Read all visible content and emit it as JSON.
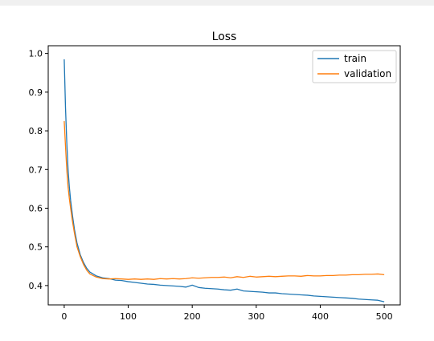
{
  "chart_data": {
    "type": "line",
    "title": "Loss",
    "xlabel": "",
    "ylabel": "",
    "xlim": [
      -25,
      525
    ],
    "ylim": [
      0.35,
      1.02
    ],
    "xticks": [
      0,
      100,
      200,
      300,
      400,
      500
    ],
    "yticks": [
      0.4,
      0.5,
      0.6,
      0.7,
      0.8,
      0.9,
      1.0
    ],
    "xtick_labels": [
      "0",
      "100",
      "200",
      "300",
      "400",
      "500"
    ],
    "ytick_labels": [
      "0.4",
      "0.5",
      "0.6",
      "0.7",
      "0.8",
      "0.9",
      "1.0"
    ],
    "legend": {
      "placement": "upper right",
      "entries": [
        "train",
        "validation"
      ]
    },
    "grid": false,
    "series": [
      {
        "name": "train",
        "color": "#1f77b4",
        "x": [
          0,
          2,
          4,
          6,
          8,
          10,
          13,
          16,
          20,
          25,
          30,
          35,
          40,
          50,
          60,
          70,
          80,
          90,
          100,
          110,
          120,
          130,
          140,
          150,
          160,
          170,
          180,
          190,
          200,
          210,
          220,
          230,
          240,
          250,
          260,
          270,
          280,
          290,
          300,
          310,
          320,
          330,
          340,
          350,
          360,
          370,
          380,
          390,
          400,
          410,
          420,
          430,
          440,
          450,
          460,
          470,
          480,
          490,
          500
        ],
        "y": [
          0.985,
          0.86,
          0.77,
          0.7,
          0.655,
          0.62,
          0.58,
          0.545,
          0.51,
          0.48,
          0.46,
          0.445,
          0.435,
          0.425,
          0.42,
          0.418,
          0.414,
          0.413,
          0.41,
          0.408,
          0.406,
          0.404,
          0.403,
          0.401,
          0.4,
          0.399,
          0.398,
          0.396,
          0.401,
          0.395,
          0.393,
          0.392,
          0.391,
          0.389,
          0.388,
          0.391,
          0.386,
          0.385,
          0.384,
          0.383,
          0.381,
          0.381,
          0.379,
          0.378,
          0.377,
          0.376,
          0.375,
          0.373,
          0.372,
          0.371,
          0.37,
          0.369,
          0.368,
          0.367,
          0.365,
          0.364,
          0.363,
          0.362,
          0.358
        ]
      },
      {
        "name": "validation",
        "color": "#ff7f0e",
        "x": [
          0,
          2,
          4,
          6,
          8,
          10,
          13,
          16,
          20,
          25,
          30,
          35,
          40,
          50,
          60,
          70,
          80,
          90,
          100,
          110,
          120,
          130,
          140,
          150,
          160,
          170,
          180,
          190,
          200,
          210,
          220,
          230,
          240,
          250,
          260,
          270,
          280,
          290,
          300,
          310,
          320,
          330,
          340,
          350,
          360,
          370,
          380,
          390,
          400,
          410,
          420,
          430,
          440,
          450,
          460,
          470,
          480,
          490,
          500
        ],
        "y": [
          0.825,
          0.76,
          0.7,
          0.655,
          0.625,
          0.6,
          0.565,
          0.535,
          0.5,
          0.475,
          0.455,
          0.44,
          0.43,
          0.422,
          0.418,
          0.417,
          0.418,
          0.417,
          0.416,
          0.417,
          0.416,
          0.417,
          0.416,
          0.418,
          0.417,
          0.418,
          0.417,
          0.418,
          0.42,
          0.419,
          0.42,
          0.421,
          0.421,
          0.422,
          0.42,
          0.423,
          0.421,
          0.424,
          0.422,
          0.423,
          0.424,
          0.423,
          0.424,
          0.425,
          0.425,
          0.424,
          0.426,
          0.425,
          0.425,
          0.426,
          0.426,
          0.427,
          0.427,
          0.428,
          0.428,
          0.429,
          0.429,
          0.43,
          0.428
        ]
      }
    ]
  }
}
